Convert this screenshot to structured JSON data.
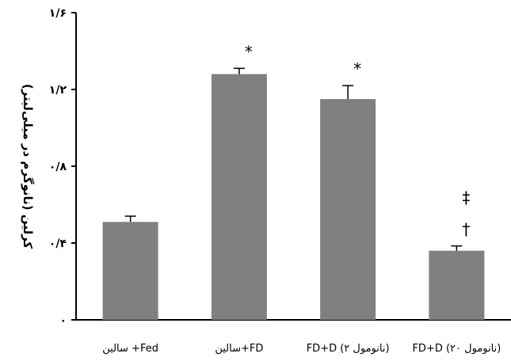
{
  "chart_data": {
    "type": "bar",
    "categories": [
      "سالین +Fed",
      "سالین+FD",
      "FD+D (۲ نانومول)",
      "FD+D (۲۰ نانومول)"
    ],
    "values": [
      0.51,
      1.28,
      1.15,
      0.36
    ],
    "errors": [
      0.03,
      0.03,
      0.07,
      0.025
    ],
    "annotations": [
      "",
      "*",
      "*",
      "‡\n†"
    ],
    "ylabel": "کرلین (نانوگرم در میلی‌لیتر)",
    "ylim": [
      0,
      1.6
    ],
    "yticks": [
      0,
      0.4,
      0.8,
      1.2,
      1.6
    ],
    "ytick_labels": [
      "۰",
      "۰/۴",
      "۰/۸",
      "۱/۲",
      "۱/۶"
    ],
    "bar_color": "#808080",
    "grid": false,
    "legend": "none"
  }
}
